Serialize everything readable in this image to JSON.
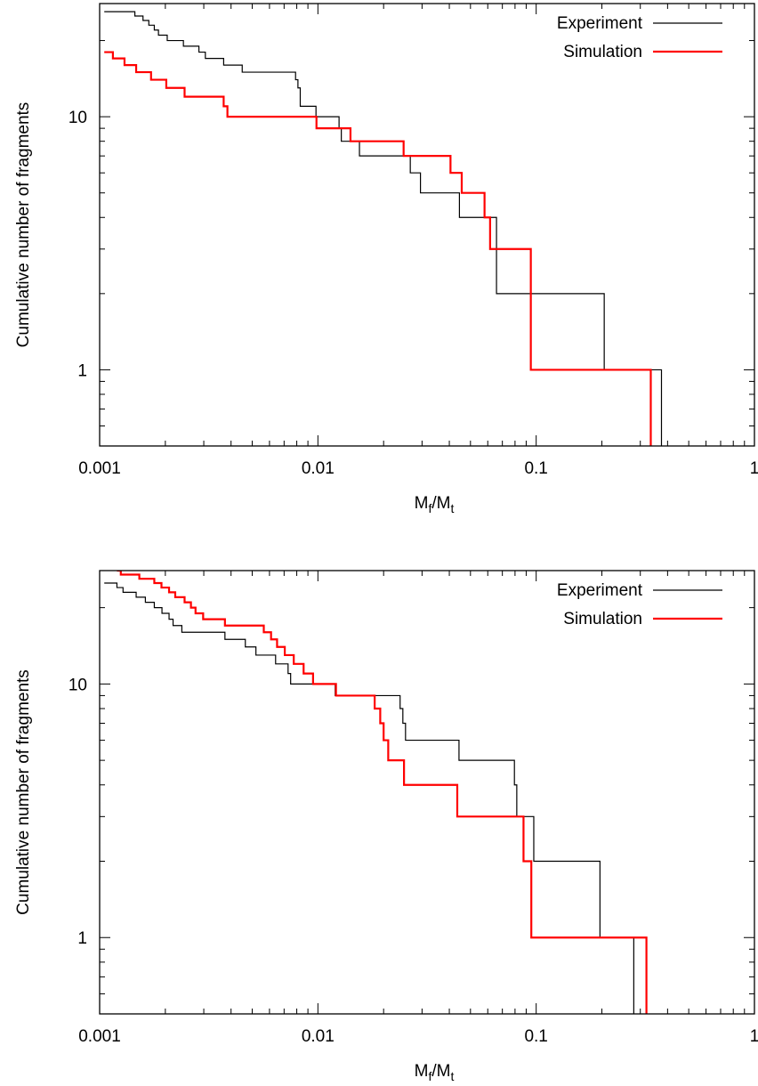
{
  "chart_data": [
    {
      "type": "line",
      "title": "",
      "xlabel": "M_f/M_t",
      "ylabel": "Cumulative number of fragments",
      "xscale": "log",
      "yscale": "log",
      "xlim": [
        0.001,
        1
      ],
      "ylim": [
        0.5,
        28
      ],
      "xticks": [
        {
          "value": 0.001,
          "label": "0.001"
        },
        {
          "value": 0.01,
          "label": "0.01"
        },
        {
          "value": 0.1,
          "label": "0.1"
        },
        {
          "value": 1,
          "label": "1"
        }
      ],
      "yticks": [
        {
          "value": 1,
          "label": "1"
        },
        {
          "value": 10,
          "label": "10"
        }
      ],
      "legend": "top-right",
      "series": [
        {
          "name": "Experiment",
          "color": "#000000",
          "steps": [
            [
              0.00105,
              26
            ],
            [
              0.00145,
              25
            ],
            [
              0.00158,
              24
            ],
            [
              0.00168,
              23
            ],
            [
              0.00178,
              22
            ],
            [
              0.00186,
              21
            ],
            [
              0.00204,
              20
            ],
            [
              0.00242,
              19
            ],
            [
              0.00285,
              18
            ],
            [
              0.00305,
              17
            ],
            [
              0.0037,
              16
            ],
            [
              0.0045,
              15
            ],
            [
              0.0079,
              14
            ],
            [
              0.0081,
              13
            ],
            [
              0.0083,
              11
            ],
            [
              0.0098,
              10
            ],
            [
              0.0125,
              9
            ],
            [
              0.0128,
              8
            ],
            [
              0.0155,
              7
            ],
            [
              0.0265,
              6
            ],
            [
              0.0295,
              5
            ],
            [
              0.0445,
              4
            ],
            [
              0.0658,
              2
            ],
            [
              0.205,
              1
            ],
            [
              0.375,
              0.5
            ]
          ]
        },
        {
          "name": "Simulation",
          "color": "#ff0000",
          "steps": [
            [
              0.00105,
              18
            ],
            [
              0.00115,
              17
            ],
            [
              0.0013,
              16
            ],
            [
              0.00147,
              15
            ],
            [
              0.00172,
              14
            ],
            [
              0.00202,
              13
            ],
            [
              0.00245,
              12
            ],
            [
              0.0037,
              11
            ],
            [
              0.00385,
              10
            ],
            [
              0.00985,
              9
            ],
            [
              0.0141,
              8
            ],
            [
              0.0247,
              7
            ],
            [
              0.0405,
              6
            ],
            [
              0.0456,
              5
            ],
            [
              0.058,
              4
            ],
            [
              0.0615,
              3
            ],
            [
              0.0945,
              1
            ],
            [
              0.335,
              0.5
            ]
          ]
        }
      ]
    },
    {
      "type": "line",
      "title": "",
      "xlabel": "M_f/M_t",
      "ylabel": "Cumulative number of fragments",
      "xscale": "log",
      "yscale": "log",
      "xlim": [
        0.001,
        1
      ],
      "ylim": [
        0.5,
        28
      ],
      "xticks": [
        {
          "value": 0.001,
          "label": "0.001"
        },
        {
          "value": 0.01,
          "label": "0.01"
        },
        {
          "value": 0.1,
          "label": "0.1"
        },
        {
          "value": 1,
          "label": "1"
        }
      ],
      "yticks": [
        {
          "value": 1,
          "label": "1"
        },
        {
          "value": 10,
          "label": "10"
        }
      ],
      "legend": "top-right",
      "series": [
        {
          "name": "Experiment",
          "color": "#000000",
          "steps": [
            [
              0.00105,
              25
            ],
            [
              0.0012,
              24
            ],
            [
              0.00128,
              23
            ],
            [
              0.00147,
              22
            ],
            [
              0.00162,
              21
            ],
            [
              0.00178,
              20
            ],
            [
              0.00193,
              19
            ],
            [
              0.00208,
              18
            ],
            [
              0.00217,
              17
            ],
            [
              0.00238,
              16
            ],
            [
              0.00375,
              15
            ],
            [
              0.00465,
              14
            ],
            [
              0.0052,
              13
            ],
            [
              0.0064,
              12
            ],
            [
              0.0073,
              11
            ],
            [
              0.0075,
              10
            ],
            [
              0.012,
              9
            ],
            [
              0.0238,
              8
            ],
            [
              0.0245,
              7
            ],
            [
              0.0252,
              6
            ],
            [
              0.0443,
              5
            ],
            [
              0.0795,
              4
            ],
            [
              0.0815,
              3
            ],
            [
              0.0975,
              2
            ],
            [
              0.196,
              1
            ],
            [
              0.28,
              0.5
            ]
          ]
        },
        {
          "name": "Simulation",
          "color": "#ff0000",
          "steps": [
            [
              0.0012,
              28
            ],
            [
              0.00125,
              27
            ],
            [
              0.00152,
              26
            ],
            [
              0.00178,
              25
            ],
            [
              0.00192,
              24
            ],
            [
              0.00208,
              23
            ],
            [
              0.00222,
              22
            ],
            [
              0.00245,
              21
            ],
            [
              0.00262,
              20
            ],
            [
              0.00275,
              19
            ],
            [
              0.00298,
              18
            ],
            [
              0.00375,
              17
            ],
            [
              0.00565,
              16
            ],
            [
              0.0061,
              15
            ],
            [
              0.0065,
              14
            ],
            [
              0.00705,
              13
            ],
            [
              0.00775,
              12
            ],
            [
              0.0086,
              11
            ],
            [
              0.0095,
              10
            ],
            [
              0.0121,
              9
            ],
            [
              0.0182,
              8
            ],
            [
              0.0193,
              7
            ],
            [
              0.02,
              6
            ],
            [
              0.021,
              5
            ],
            [
              0.0248,
              4
            ],
            [
              0.0435,
              3
            ],
            [
              0.0875,
              2
            ],
            [
              0.095,
              1
            ],
            [
              0.32,
              0.5
            ]
          ]
        }
      ]
    }
  ]
}
